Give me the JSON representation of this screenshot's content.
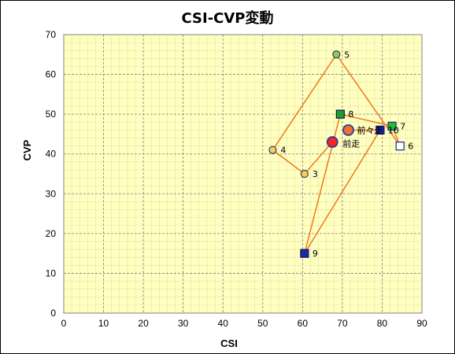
{
  "chart_data": {
    "type": "scatter",
    "title": "CSI-CVP変動",
    "xlabel": "CSI",
    "ylabel": "CVP",
    "xlim": [
      0,
      90
    ],
    "ylim": [
      0,
      70
    ],
    "x_ticks": [
      0,
      10,
      20,
      30,
      40,
      50,
      60,
      70,
      80,
      90
    ],
    "y_ticks": [
      0,
      10,
      20,
      30,
      40,
      50,
      60,
      70
    ],
    "grid": true,
    "minor_grid": true,
    "plot_background": "#ffffc0",
    "line_color": "#f07820",
    "path": [
      {
        "label": "前走",
        "x": 67.5,
        "y": 43
      },
      {
        "label": "3",
        "x": 60.5,
        "y": 35
      },
      {
        "label": "4",
        "x": 52.5,
        "y": 41
      },
      {
        "label": "5",
        "x": 68.5,
        "y": 65
      },
      {
        "label": "6",
        "x": 84.5,
        "y": 42
      },
      {
        "label": "7",
        "x": 82.5,
        "y": 47
      },
      {
        "label": "8",
        "x": 69.5,
        "y": 50
      },
      {
        "label": "9",
        "x": 60.5,
        "y": 15
      },
      {
        "label": "10",
        "x": 79.5,
        "y": 46
      },
      {
        "label": "前々走",
        "x": 71.5,
        "y": 46
      }
    ],
    "points": [
      {
        "label": "3",
        "x": 60.5,
        "y": 35,
        "marker": "circle",
        "fill": "#ffd040",
        "stroke": "#2040a0"
      },
      {
        "label": "4",
        "x": 52.5,
        "y": 41,
        "marker": "circle",
        "fill": "#ffd040",
        "stroke": "#2040a0"
      },
      {
        "label": "5",
        "x": 68.5,
        "y": 65,
        "marker": "circle",
        "fill": "#9acd32",
        "stroke": "#2040a0"
      },
      {
        "label": "6",
        "x": 84.5,
        "y": 42,
        "marker": "square",
        "fill": "#ffffff",
        "stroke": "#1a2a9a"
      },
      {
        "label": "7",
        "x": 82.5,
        "y": 47,
        "marker": "square",
        "fill": "#20c020",
        "stroke": "#1a2a9a"
      },
      {
        "label": "8",
        "x": 69.5,
        "y": 50,
        "marker": "square",
        "fill": "#20a020",
        "stroke": "#0a1a6a"
      },
      {
        "label": "9",
        "x": 60.5,
        "y": 15,
        "marker": "square",
        "fill": "#1a2a9a",
        "stroke": "#0a1a6a"
      },
      {
        "label": "10",
        "x": 79.5,
        "y": 46,
        "marker": "square",
        "fill": "#1a2a9a",
        "stroke": "#0a1a6a"
      },
      {
        "label": "前々走",
        "x": 71.5,
        "y": 46,
        "marker": "circle-large",
        "fill": "#f07030",
        "stroke": "#2040a0"
      },
      {
        "label": "前走",
        "x": 67.5,
        "y": 43,
        "marker": "circle-large",
        "fill": "#ff2020",
        "stroke": "#2040a0"
      }
    ]
  }
}
